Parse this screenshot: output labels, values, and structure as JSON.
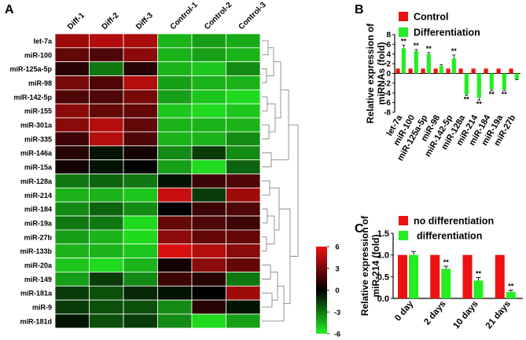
{
  "panels": {
    "a": {
      "letter": "A"
    },
    "b": {
      "letter": "B"
    },
    "c": {
      "letter": "C"
    }
  },
  "colors": {
    "red": "#ee1111",
    "green": "#22ee22",
    "black": "#000000",
    "grid": "#bbbbbb"
  },
  "chart_data": [
    {
      "type": "heatmap",
      "panel": "A",
      "columns": [
        "Diff-1",
        "Diff-2",
        "Diff-3",
        "Control-1",
        "Control-2",
        "Control-3"
      ],
      "rows": [
        "let-7a",
        "miR-100",
        "miR-125a-5p",
        "miR-98",
        "miR-142-5p",
        "miR-155",
        "miR-301a",
        "miR-335",
        "miR-146a",
        "miR-15a",
        "miR-128a",
        "miR-214",
        "miR-184",
        "miR-19a",
        "miR-27b",
        "miR-133b",
        "miR-20a",
        "miR-149",
        "miR-181a",
        "miR-9",
        "miR-181d"
      ],
      "values": [
        [
          4.0,
          4.5,
          4.3,
          -4.5,
          -4.0,
          -4.3
        ],
        [
          2.5,
          2.0,
          3.5,
          -4.5,
          -4.0,
          -4.5
        ],
        [
          1.0,
          -3.0,
          1.0,
          -4.5,
          -5.0,
          -3.5
        ],
        [
          3.0,
          2.0,
          4.5,
          -4.0,
          -4.5,
          -4.5
        ],
        [
          2.0,
          2.0,
          3.0,
          -4.0,
          -5.0,
          -5.5
        ],
        [
          3.5,
          2.5,
          2.5,
          -5.0,
          -5.5,
          -5.0
        ],
        [
          3.5,
          4.5,
          2.5,
          -4.5,
          -4.5,
          -4.5
        ],
        [
          1.5,
          4.5,
          2.0,
          -4.5,
          -4.5,
          -3.5
        ],
        [
          1.0,
          -0.5,
          0.5,
          -3.5,
          -1.5,
          -3.5
        ],
        [
          0.5,
          -0.5,
          0.0,
          -4.0,
          -5.5,
          -2.5
        ],
        [
          -3.0,
          -2.5,
          -3.0,
          -0.5,
          1.5,
          2.0
        ],
        [
          -4.5,
          -4.5,
          -5.0,
          5.0,
          -1.5,
          4.0
        ],
        [
          -3.5,
          -2.5,
          -3.5,
          0.0,
          1.5,
          2.0
        ],
        [
          -3.0,
          -3.0,
          -5.5,
          2.5,
          2.0,
          1.5
        ],
        [
          -4.0,
          -4.5,
          -5.5,
          3.5,
          2.5,
          2.5
        ],
        [
          -4.5,
          -4.5,
          -5.0,
          5.5,
          4.5,
          3.5
        ],
        [
          -5.0,
          -5.5,
          -4.5,
          0.5,
          3.5,
          2.5
        ],
        [
          -4.0,
          -1.5,
          -3.5,
          1.5,
          1.0,
          -3.0
        ],
        [
          -1.5,
          -2.0,
          -1.0,
          -0.5,
          0.0,
          4.0
        ],
        [
          -1.5,
          -2.0,
          -2.0,
          -3.5,
          1.0,
          -0.5
        ],
        [
          -0.5,
          -2.0,
          -1.5,
          -3.5,
          -5.5,
          -4.0
        ]
      ],
      "scale": {
        "min": -6,
        "max": 6,
        "ticks": [
          "6",
          "3",
          "0",
          "-3",
          "-6"
        ]
      }
    },
    {
      "type": "bar",
      "panel": "B",
      "categories": [
        "let-7a",
        "miR-100",
        "miR-125a-5p",
        "miR-98",
        "miR-142-5p",
        "miR-128a",
        "miR-214",
        "miR-184",
        "miR-19a",
        "miR-27b"
      ],
      "series": [
        {
          "name": "Control",
          "values": [
            1,
            1,
            1,
            1,
            1,
            1,
            1,
            1,
            1,
            1
          ]
        },
        {
          "name": "Differentiation",
          "values": [
            5.2,
            4.6,
            4.0,
            1.5,
            3.1,
            -4.3,
            -5.0,
            -3.3,
            -3.3,
            -1.2
          ]
        }
      ],
      "errors": [
        0.6,
        0.3,
        0.3,
        0.3,
        0.7,
        0.2,
        0.5,
        0.2,
        0.2,
        0.1
      ],
      "significance": [
        "**",
        "**",
        "**",
        "",
        "**",
        "**",
        "**",
        "**",
        "**",
        ""
      ],
      "ylabel": "Relative expression of miRNAs (fold)",
      "ylim": [
        -8,
        8
      ],
      "yticks": [
        "8",
        "6",
        "4",
        "2",
        "0",
        "-2",
        "-4",
        "-6",
        "-8"
      ]
    },
    {
      "type": "bar",
      "panel": "C",
      "categories": [
        "0 day",
        "2 days",
        "10 days",
        "21 days"
      ],
      "series": [
        {
          "name": "no differentiation",
          "values": [
            1.0,
            1.0,
            1.0,
            1.0
          ]
        },
        {
          "name": "differentiation",
          "values": [
            1.0,
            0.68,
            0.41,
            0.15
          ]
        }
      ],
      "errors": [
        0.08,
        0.06,
        0.07,
        0.04
      ],
      "significance": [
        "",
        "**",
        "**",
        "**"
      ],
      "ylabel": "Relative expression of miR-214 (fold)",
      "ylim": [
        0,
        1.5
      ],
      "yticks": [
        "1.5",
        "1.0",
        "0.5",
        "0.0"
      ]
    }
  ]
}
